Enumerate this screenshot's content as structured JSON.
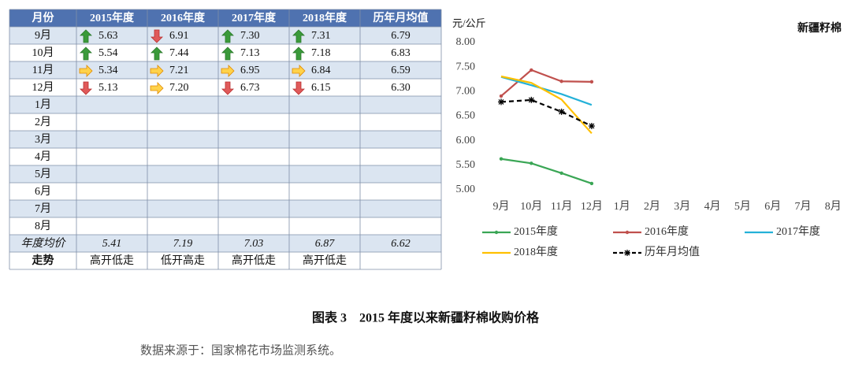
{
  "table": {
    "header": [
      "月份",
      "2015年度",
      "2016年度",
      "2017年度",
      "2018年度",
      "历年月均值"
    ],
    "rows": [
      [
        "9月",
        "5.63",
        "6.91",
        "7.30",
        "7.31",
        "6.79"
      ],
      [
        "10月",
        "5.54",
        "7.44",
        "7.13",
        "7.18",
        "6.83"
      ],
      [
        "11月",
        "5.34",
        "7.21",
        "6.95",
        "6.84",
        "6.59"
      ],
      [
        "12月",
        "5.13",
        "7.20",
        "6.73",
        "6.15",
        "6.30"
      ],
      [
        "1月"
      ],
      [
        "2月"
      ],
      [
        "3月"
      ],
      [
        "4月"
      ],
      [
        "5月"
      ],
      [
        "6月"
      ],
      [
        "7月"
      ],
      [
        "8月"
      ]
    ],
    "arrows": [
      [
        "up",
        "down",
        "up",
        "up"
      ],
      [
        "up",
        "up",
        "up",
        "up"
      ],
      [
        "right",
        "right",
        "right",
        "right"
      ],
      [
        "down",
        "right",
        "down",
        "down"
      ]
    ],
    "average": [
      "年度均价",
      "5.41",
      "7.19",
      "7.03",
      "6.87",
      "6.62"
    ],
    "trend": [
      "走势",
      "高开低走",
      "低开高走",
      "高开低走",
      "高开低走"
    ]
  },
  "chart_data": {
    "type": "line",
    "title": "新疆籽棉",
    "y_label": "元/公斤",
    "categories": [
      "9月",
      "10月",
      "11月",
      "12月",
      "1月",
      "2月",
      "3月",
      "4月",
      "5月",
      "6月",
      "7月",
      "8月"
    ],
    "series": [
      {
        "name": "2015年度",
        "color": "#3aa655",
        "marker": "dot",
        "values": [
          5.63,
          5.54,
          5.34,
          5.13,
          null,
          null,
          null,
          null,
          null,
          null,
          null,
          null
        ]
      },
      {
        "name": "2016年度",
        "color": "#c0504d",
        "marker": "dot",
        "values": [
          6.91,
          7.44,
          7.21,
          7.2,
          null,
          null,
          null,
          null,
          null,
          null,
          null,
          null
        ]
      },
      {
        "name": "2017年度",
        "color": "#24b1d8",
        "values": [
          7.3,
          7.13,
          6.95,
          6.73,
          null,
          null,
          null,
          null,
          null,
          null,
          null,
          null
        ]
      },
      {
        "name": "2018年度",
        "color": "#ffc000",
        "values": [
          7.31,
          7.18,
          6.84,
          6.15,
          null,
          null,
          null,
          null,
          null,
          null,
          null,
          null
        ]
      },
      {
        "name": "历年月均值",
        "color": "#000000",
        "marker": "star",
        "dashed": true,
        "values": [
          6.79,
          6.83,
          6.59,
          6.3,
          null,
          null,
          null,
          null,
          null,
          null,
          null,
          null
        ]
      }
    ],
    "ylim": [
      5,
      8
    ],
    "yticks": [
      {
        "value": 5,
        "label": "5.00"
      },
      {
        "value": 5.5,
        "label": "5.50"
      },
      {
        "value": 6,
        "label": "6.00"
      },
      {
        "value": 6.5,
        "label": "6.50"
      },
      {
        "value": 7,
        "label": "7.00"
      },
      {
        "value": 7.5,
        "label": "7.50"
      },
      {
        "value": 8,
        "label": "8.00"
      }
    ],
    "grid": false
  },
  "caption": "图表 3　2015 年度以来新疆籽棉收购价格",
  "source": "数据来源于：国家棉花市场监测系统。"
}
